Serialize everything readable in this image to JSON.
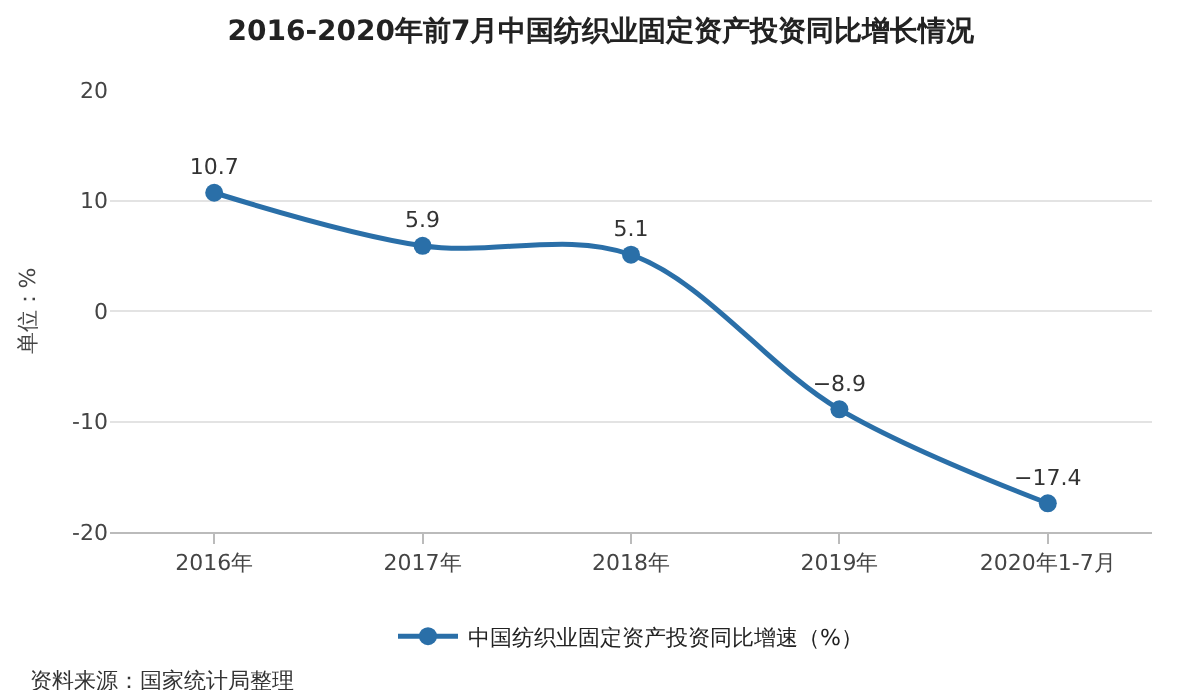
{
  "chart_data": {
    "type": "line",
    "title": "2016-2020年前7月中国纺织业固定资产投资同比增长情况",
    "ylabel": "单位：%",
    "categories": [
      "2016年",
      "2017年",
      "2018年",
      "2019年",
      "2020年1-7月"
    ],
    "series": [
      {
        "name": "中国纺织业固定资产投资同比增速（%）",
        "color": "#2a6fa8",
        "values": [
          10.7,
          5.9,
          5.1,
          -8.9,
          -17.4
        ]
      }
    ],
    "ylim": [
      -20,
      20
    ],
    "yticks": [
      -20,
      -10,
      0,
      10,
      20
    ],
    "grid": "y",
    "legend": "bottom",
    "marker": "circle",
    "line_style": "solid",
    "data_labels": true,
    "annotations": [
      "资料来源：国家统计局整理"
    ]
  }
}
